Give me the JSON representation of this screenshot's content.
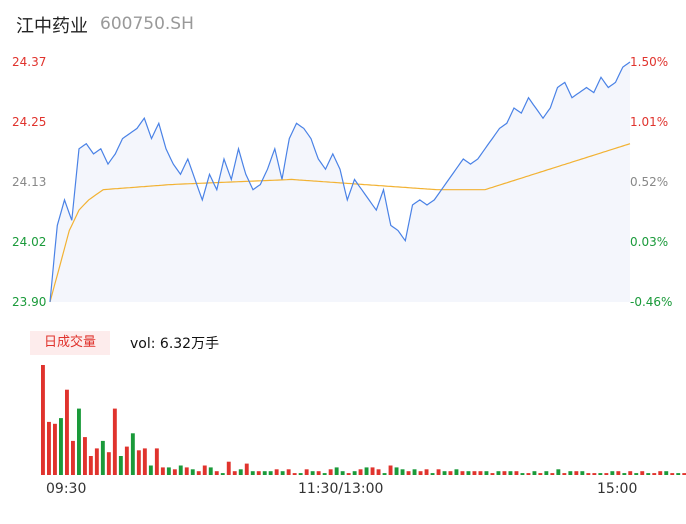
{
  "header": {
    "name": "江中药业",
    "code": "600750.SH"
  },
  "y_axis": {
    "prices": [
      "24.37",
      "24.25",
      "24.13",
      "24.02",
      "23.90"
    ],
    "percents": [
      "1.50%",
      "1.01%",
      "0.52%",
      "0.03%",
      "-0.46%"
    ]
  },
  "volume": {
    "badge": "日成交量",
    "text": "vol: 6.32万手"
  },
  "times": [
    "09:30",
    "11:30/13:00",
    "15:00"
  ],
  "colors": {
    "up": "#e0332d",
    "down": "#1a9a3a",
    "price_line": "#4a82e6",
    "avg_line": "#f2b233",
    "area": "#f4f6fc"
  },
  "chart_data": {
    "type": "line",
    "ylim": [
      23.9,
      24.37
    ],
    "x_count": 240,
    "price_anchors": [
      [
        0,
        23.9
      ],
      [
        3,
        24.05
      ],
      [
        6,
        24.1
      ],
      [
        9,
        24.06
      ],
      [
        12,
        24.2
      ],
      [
        15,
        24.21
      ],
      [
        18,
        24.19
      ],
      [
        21,
        24.2
      ],
      [
        24,
        24.17
      ],
      [
        27,
        24.19
      ],
      [
        30,
        24.22
      ],
      [
        33,
        24.23
      ],
      [
        36,
        24.24
      ],
      [
        39,
        24.26
      ],
      [
        42,
        24.22
      ],
      [
        45,
        24.25
      ],
      [
        48,
        24.2
      ],
      [
        51,
        24.17
      ],
      [
        54,
        24.15
      ],
      [
        57,
        24.18
      ],
      [
        60,
        24.14
      ],
      [
        63,
        24.1
      ],
      [
        66,
        24.15
      ],
      [
        69,
        24.12
      ],
      [
        72,
        24.18
      ],
      [
        75,
        24.14
      ],
      [
        78,
        24.2
      ],
      [
        81,
        24.15
      ],
      [
        84,
        24.12
      ],
      [
        87,
        24.13
      ],
      [
        90,
        24.16
      ],
      [
        93,
        24.2
      ],
      [
        96,
        24.14
      ],
      [
        99,
        24.22
      ],
      [
        102,
        24.25
      ],
      [
        105,
        24.24
      ],
      [
        108,
        24.22
      ],
      [
        111,
        24.18
      ],
      [
        114,
        24.16
      ],
      [
        117,
        24.19
      ],
      [
        120,
        24.16
      ],
      [
        123,
        24.1
      ],
      [
        126,
        24.14
      ],
      [
        129,
        24.12
      ],
      [
        132,
        24.1
      ],
      [
        135,
        24.08
      ],
      [
        138,
        24.12
      ],
      [
        141,
        24.05
      ],
      [
        144,
        24.04
      ],
      [
        147,
        24.02
      ],
      [
        150,
        24.09
      ],
      [
        153,
        24.1
      ],
      [
        156,
        24.09
      ],
      [
        159,
        24.1
      ],
      [
        162,
        24.12
      ],
      [
        165,
        24.14
      ],
      [
        168,
        24.16
      ],
      [
        171,
        24.18
      ],
      [
        174,
        24.17
      ],
      [
        177,
        24.18
      ],
      [
        180,
        24.2
      ],
      [
        183,
        24.22
      ],
      [
        186,
        24.24
      ],
      [
        189,
        24.25
      ],
      [
        192,
        24.28
      ],
      [
        195,
        24.27
      ],
      [
        198,
        24.3
      ],
      [
        201,
        24.28
      ],
      [
        204,
        24.26
      ],
      [
        207,
        24.28
      ],
      [
        210,
        24.32
      ],
      [
        213,
        24.33
      ],
      [
        216,
        24.3
      ],
      [
        219,
        24.31
      ],
      [
        222,
        24.32
      ],
      [
        225,
        24.31
      ],
      [
        228,
        24.34
      ],
      [
        231,
        24.32
      ],
      [
        234,
        24.33
      ],
      [
        237,
        24.36
      ],
      [
        240,
        24.37
      ]
    ],
    "avg_anchors": [
      [
        0,
        23.9
      ],
      [
        4,
        23.97
      ],
      [
        8,
        24.04
      ],
      [
        12,
        24.08
      ],
      [
        16,
        24.1
      ],
      [
        22,
        24.12
      ],
      [
        50,
        24.13
      ],
      [
        100,
        24.14
      ],
      [
        130,
        24.13
      ],
      [
        160,
        24.12
      ],
      [
        180,
        24.12
      ],
      [
        200,
        24.15
      ],
      [
        220,
        24.18
      ],
      [
        240,
        24.21
      ]
    ],
    "volume_bars": [
      58,
      28,
      27,
      30,
      45,
      18,
      35,
      20,
      10,
      14,
      18,
      12,
      35,
      10,
      15,
      22,
      13,
      14,
      5,
      14,
      4,
      4,
      3,
      5,
      4,
      3,
      2,
      5,
      4,
      2,
      1,
      7,
      2,
      3,
      6,
      2,
      2,
      2,
      2,
      3,
      2,
      3,
      1,
      1,
      3,
      2,
      2,
      1,
      3,
      4,
      2,
      1,
      2,
      3,
      4,
      4,
      3,
      1,
      5,
      4,
      3,
      2,
      3,
      2,
      3,
      1,
      3,
      2,
      2,
      3,
      2,
      2,
      2,
      2,
      2,
      1,
      2,
      2,
      2,
      2,
      1,
      1,
      2,
      1,
      2,
      1,
      3,
      1,
      2,
      2,
      2,
      1,
      1,
      1,
      1,
      2,
      2,
      1,
      2,
      1,
      2,
      1,
      1,
      2,
      2,
      1,
      1,
      1,
      2,
      2,
      1,
      2,
      1,
      1,
      2,
      1,
      2,
      1,
      2,
      2,
      1,
      2,
      1,
      1,
      1,
      2,
      1,
      1,
      2,
      2,
      1,
      2,
      1,
      1,
      2,
      1,
      1,
      2,
      1,
      1,
      2,
      2,
      1,
      2,
      1,
      2,
      1,
      1,
      1,
      2,
      1,
      2,
      1,
      1,
      2,
      1,
      1,
      2,
      1,
      2,
      1,
      1,
      2,
      1,
      1,
      2,
      2,
      1,
      1,
      2,
      1,
      2,
      2,
      1,
      2,
      1,
      1,
      2,
      1,
      1,
      2,
      1,
      1,
      2,
      2,
      1,
      1,
      2,
      1,
      1,
      2,
      2,
      1,
      3,
      1,
      2,
      1,
      1,
      2,
      2,
      3,
      1,
      2,
      2,
      3,
      4,
      2,
      3,
      1,
      2,
      2,
      3,
      3,
      3,
      2,
      4,
      2,
      5,
      3,
      2,
      4,
      3,
      5,
      3,
      2,
      3,
      4,
      2,
      3,
      4,
      3,
      2,
      5,
      4,
      3,
      8,
      4,
      5,
      6,
      5
    ],
    "volume_dirs": [
      "up",
      "up",
      "up",
      "down",
      "up",
      "up",
      "down",
      "up",
      "up",
      "up",
      "down",
      "up",
      "up",
      "down",
      "up",
      "down",
      "up",
      "up",
      "down",
      "up",
      "up",
      "down",
      "up",
      "down",
      "up",
      "down",
      "up",
      "up",
      "down",
      "up",
      "down",
      "up",
      "up",
      "down",
      "up",
      "down",
      "up",
      "down",
      "down",
      "up",
      "down",
      "up",
      "up",
      "down",
      "up",
      "down",
      "up",
      "down",
      "up",
      "down",
      "down",
      "up",
      "down",
      "up",
      "down",
      "up",
      "up",
      "down",
      "up",
      "down",
      "down",
      "up",
      "down",
      "up",
      "up",
      "down",
      "up",
      "down",
      "up",
      "down",
      "up",
      "down",
      "up",
      "up",
      "down",
      "up",
      "down",
      "up",
      "down",
      "up",
      "down",
      "up",
      "down",
      "up",
      "down",
      "up",
      "down",
      "up",
      "down",
      "up",
      "down",
      "up",
      "up",
      "down",
      "up",
      "down",
      "up",
      "down",
      "up",
      "down",
      "up",
      "down",
      "up",
      "up",
      "down",
      "up",
      "down",
      "up",
      "down",
      "up",
      "down",
      "up",
      "down",
      "up",
      "up",
      "down",
      "up",
      "down",
      "up",
      "down",
      "up",
      "down",
      "up",
      "down",
      "up",
      "up",
      "down",
      "up",
      "down",
      "up",
      "down",
      "up",
      "down",
      "up",
      "down",
      "up",
      "up",
      "down",
      "up",
      "down",
      "up",
      "down",
      "up",
      "down",
      "up",
      "down",
      "up",
      "up",
      "down",
      "up",
      "down",
      "up",
      "down",
      "up",
      "down",
      "up",
      "down",
      "up",
      "up",
      "down",
      "up",
      "down",
      "up",
      "down",
      "up",
      "down",
      "up",
      "down",
      "up",
      "up",
      "down",
      "up",
      "down",
      "up",
      "down",
      "up",
      "down",
      "up",
      "down",
      "up",
      "up",
      "down",
      "up",
      "down",
      "up",
      "down",
      "up",
      "down",
      "up",
      "down",
      "up",
      "up",
      "down",
      "up",
      "down",
      "up",
      "down",
      "up",
      "down",
      "up",
      "down",
      "up",
      "up",
      "down",
      "up",
      "down",
      "up",
      "down",
      "up",
      "down",
      "up",
      "down",
      "up",
      "up",
      "down",
      "up",
      "down",
      "up",
      "down",
      "up",
      "down",
      "up",
      "down",
      "up",
      "up",
      "down",
      "up",
      "down",
      "up",
      "down",
      "up",
      "down",
      "up",
      "down",
      "up",
      "up",
      "down",
      "up",
      "down",
      "up",
      "down",
      "up",
      "down",
      "up",
      "up",
      "down"
    ]
  }
}
